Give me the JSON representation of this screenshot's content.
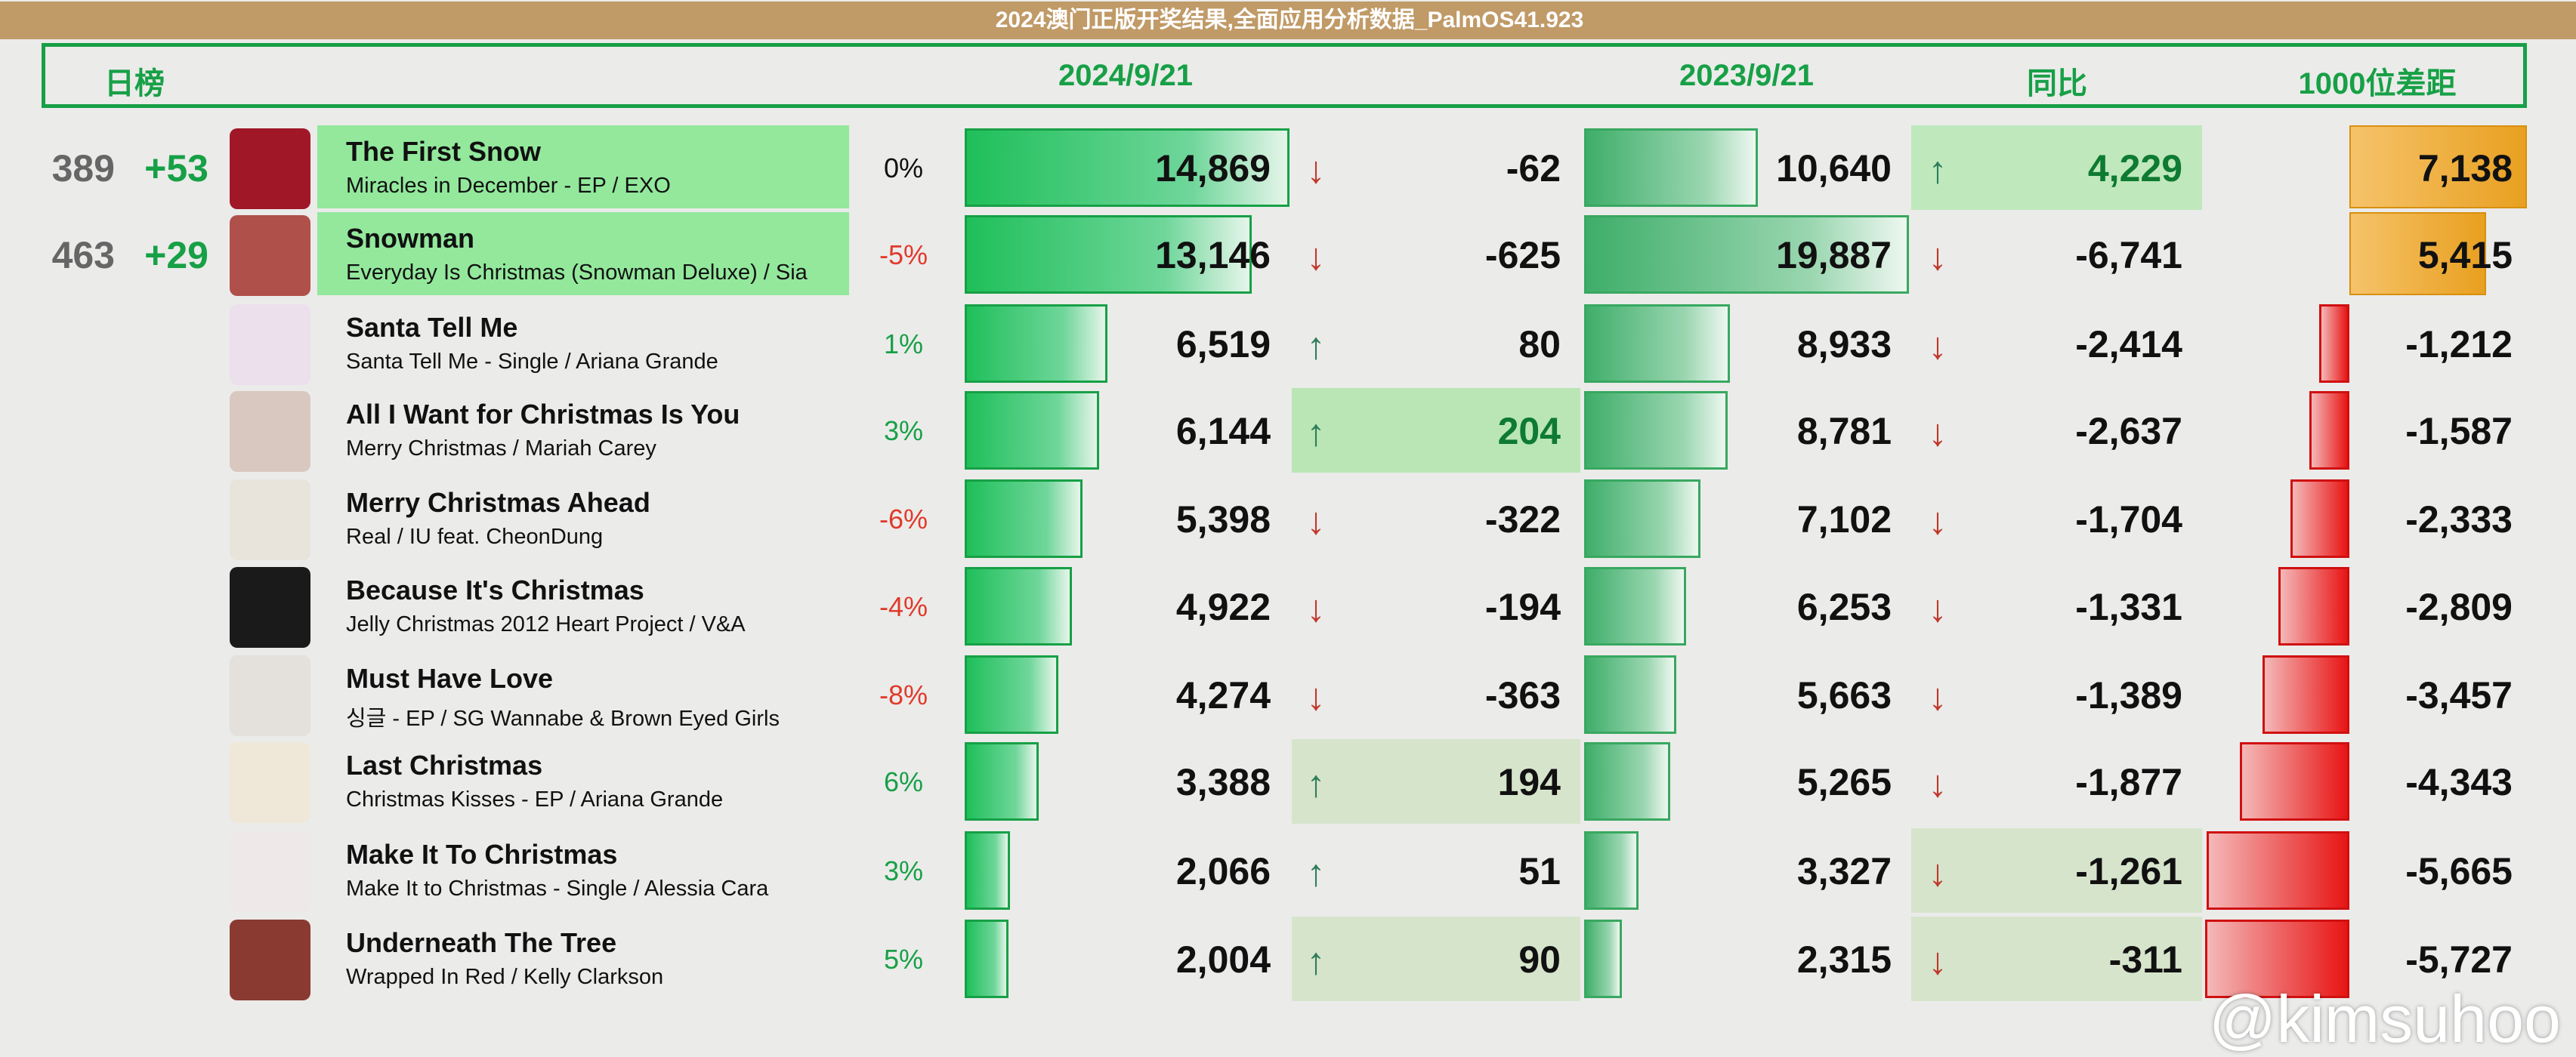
{
  "header": {
    "chart_label": "日榜",
    "date_current": "2024/9/21",
    "date_previous": "2023/9/21",
    "yoy_label": "同比",
    "gap_label": "1000位差距"
  },
  "colors": {
    "green": "#17a046",
    "red": "#e03a2a",
    "up_arrow": "#2e7d5b",
    "down_arrow": "#c0392b"
  },
  "rows": [
    {
      "rank": "389",
      "rank_change": "+53",
      "title": "The First Snow",
      "subtitle": "Miracles in December - EP / EXO",
      "pct": "0%",
      "pct_dir": "flat",
      "value": 14869,
      "value_text": "14,869",
      "diff_dir": "down",
      "diff": "-62",
      "prev_value": 10640,
      "prev_text": "10,640",
      "yoy_dir": "up",
      "yoy": "4,229",
      "gap": 7138,
      "gap_text": "7,138",
      "art_color": "#a01828",
      "highlight_title": true,
      "highlight_diff": "",
      "highlight_yoy": "strong"
    },
    {
      "rank": "463",
      "rank_change": "+29",
      "title": "Snowman",
      "subtitle": "Everyday Is Christmas (Snowman Deluxe) / Sia",
      "pct": "-5%",
      "pct_dir": "down",
      "value": 13146,
      "value_text": "13,146",
      "diff_dir": "down",
      "diff": "-625",
      "prev_value": 19887,
      "prev_text": "19,887",
      "yoy_dir": "down",
      "yoy": "-6,741",
      "gap": 5415,
      "gap_text": "5,415",
      "art_color": "#b0504a",
      "highlight_title": true,
      "highlight_diff": "",
      "highlight_yoy": ""
    },
    {
      "rank": "",
      "rank_change": "",
      "title": "Santa Tell Me",
      "subtitle": "Santa Tell Me - Single / Ariana Grande",
      "pct": "1%",
      "pct_dir": "up",
      "value": 6519,
      "value_text": "6,519",
      "diff_dir": "up",
      "diff": "80",
      "prev_value": 8933,
      "prev_text": "8,933",
      "yoy_dir": "down",
      "yoy": "-2,414",
      "gap": -1212,
      "gap_text": "-1,212",
      "art_color": "#ece0ec",
      "highlight_title": false,
      "highlight_diff": "",
      "highlight_yoy": ""
    },
    {
      "rank": "",
      "rank_change": "",
      "title": "All I Want for Christmas Is You",
      "subtitle": "Merry Christmas / Mariah Carey",
      "pct": "3%",
      "pct_dir": "up",
      "value": 6144,
      "value_text": "6,144",
      "diff_dir": "up",
      "diff": "204",
      "prev_value": 8781,
      "prev_text": "8,781",
      "yoy_dir": "down",
      "yoy": "-2,637",
      "gap": -1587,
      "gap_text": "-1,587",
      "art_color": "#d8c8c0",
      "highlight_title": false,
      "highlight_diff": "strong",
      "highlight_yoy": ""
    },
    {
      "rank": "",
      "rank_change": "",
      "title": "Merry Christmas Ahead",
      "subtitle": "Real / IU feat. CheonDung",
      "pct": "-6%",
      "pct_dir": "down",
      "value": 5398,
      "value_text": "5,398",
      "diff_dir": "down",
      "diff": "-322",
      "prev_value": 7102,
      "prev_text": "7,102",
      "yoy_dir": "down",
      "yoy": "-1,704",
      "gap": -2333,
      "gap_text": "-2,333",
      "art_color": "#e8e4dc",
      "highlight_title": false,
      "highlight_diff": "",
      "highlight_yoy": ""
    },
    {
      "rank": "",
      "rank_change": "",
      "title": "Because It's Christmas",
      "subtitle": "Jelly Christmas 2012 Heart Project  / V&A",
      "pct": "-4%",
      "pct_dir": "down",
      "value": 4922,
      "value_text": "4,922",
      "diff_dir": "down",
      "diff": "-194",
      "prev_value": 6253,
      "prev_text": "6,253",
      "yoy_dir": "down",
      "yoy": "-1,331",
      "gap": -2809,
      "gap_text": "-2,809",
      "art_color": "#1a1a1a",
      "highlight_title": false,
      "highlight_diff": "",
      "highlight_yoy": ""
    },
    {
      "rank": "",
      "rank_change": "",
      "title": "Must Have Love",
      "subtitle": "싱글 - EP / SG Wannabe & Brown Eyed Girls",
      "pct": "-8%",
      "pct_dir": "down",
      "value": 4274,
      "value_text": "4,274",
      "diff_dir": "down",
      "diff": "-363",
      "prev_value": 5663,
      "prev_text": "5,663",
      "yoy_dir": "down",
      "yoy": "-1,389",
      "gap": -3457,
      "gap_text": "-3,457",
      "art_color": "#e4e0dc",
      "highlight_title": false,
      "highlight_diff": "",
      "highlight_yoy": ""
    },
    {
      "rank": "",
      "rank_change": "",
      "title": "Last Christmas",
      "subtitle": "Christmas Kisses - EP / Ariana Grande",
      "pct": "6%",
      "pct_dir": "up",
      "value": 3388,
      "value_text": "3,388",
      "diff_dir": "up",
      "diff": "194",
      "prev_value": 5265,
      "prev_text": "5,265",
      "yoy_dir": "down",
      "yoy": "-1,877",
      "gap": -4343,
      "gap_text": "-4,343",
      "art_color": "#efe8d8",
      "highlight_title": false,
      "highlight_diff": "pale",
      "highlight_yoy": ""
    },
    {
      "rank": "",
      "rank_change": "",
      "title": "Make It To Christmas",
      "subtitle": "Make It to Christmas - Single / Alessia Cara",
      "pct": "3%",
      "pct_dir": "up",
      "value": 2066,
      "value_text": "2,066",
      "diff_dir": "up",
      "diff": "51",
      "prev_value": 3327,
      "prev_text": "3,327",
      "yoy_dir": "down",
      "yoy": "-1,261",
      "gap": -5665,
      "gap_text": "-5,665",
      "art_color": "#eee8e8",
      "highlight_title": false,
      "highlight_diff": "",
      "highlight_yoy": "pale"
    },
    {
      "rank": "",
      "rank_change": "",
      "title": "Underneath The Tree",
      "subtitle": "Wrapped In Red / Kelly Clarkson",
      "pct": "5%",
      "pct_dir": "up",
      "value": 2004,
      "value_text": "2,004",
      "diff_dir": "up",
      "diff": "90",
      "prev_value": 2315,
      "prev_text": "2,315",
      "yoy_dir": "down",
      "yoy": "-311",
      "gap": -5727,
      "gap_text": "-5,727",
      "art_color": "#8a3a30",
      "highlight_title": false,
      "highlight_diff": "pale",
      "highlight_yoy": "pale"
    }
  ],
  "overlay": {
    "banner_text": "2024澳门正版开奖结果,全面应用分析数据_PalmOS41.923",
    "watermark": "@kimsuhoo"
  }
}
